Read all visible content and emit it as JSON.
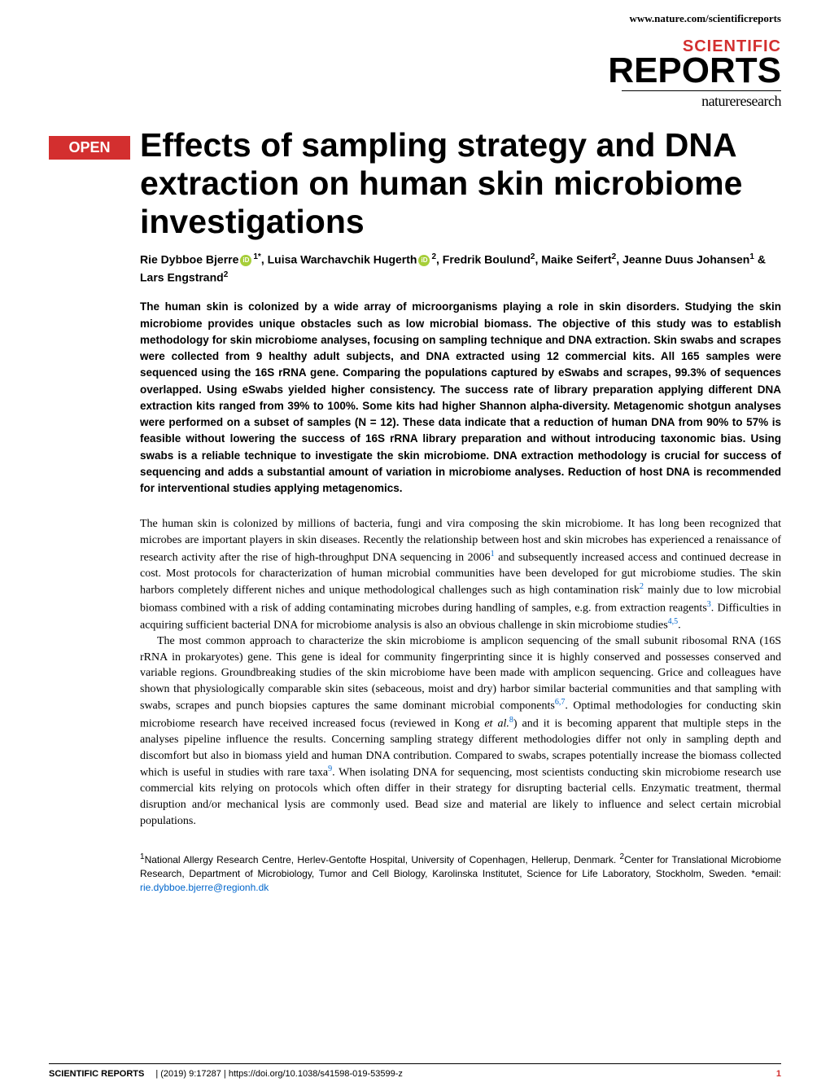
{
  "header": {
    "url": "www.nature.com/scientificreports"
  },
  "journal": {
    "scientific": "SCIENTIFIC",
    "reports": "REPORTS",
    "subtitle": "natureresearch"
  },
  "badge": {
    "open": "OPEN"
  },
  "article": {
    "title": "Effects of sampling strategy and DNA extraction on human skin microbiome investigations",
    "authors_html": "Rie Dybboe Bjerre{ORCID}<sup>1*</sup>, Luisa Warchavchik Hugerth{ORCID}<sup>2</sup>, Fredrik Boulund<sup>2</sup>, Maike Seifert<sup>2</sup>, Jeanne Duus Johansen<sup>1</sup> & Lars Engstrand<sup>2</sup>",
    "abstract": "The human skin is colonized by a wide array of microorganisms playing a role in skin disorders. Studying the skin microbiome provides unique obstacles such as low microbial biomass. The objective of this study was to establish methodology for skin microbiome analyses, focusing on sampling technique and DNA extraction. Skin swabs and scrapes were collected from 9 healthy adult subjects, and DNA extracted using 12 commercial kits. All 165 samples were sequenced using the 16S rRNA gene. Comparing the populations captured by eSwabs and scrapes, 99.3% of sequences overlapped. Using eSwabs yielded higher consistency. The success rate of library preparation applying different DNA extraction kits ranged from 39% to 100%. Some kits had higher Shannon alpha-diversity. Metagenomic shotgun analyses were performed on a subset of samples (N = 12). These data indicate that a reduction of human DNA from 90% to 57% is feasible without lowering the success of 16S rRNA library preparation and without introducing taxonomic bias. Using swabs is a reliable technique to investigate the skin microbiome. DNA extraction methodology is crucial for success of sequencing and adds a substantial amount of variation in microbiome analyses. Reduction of host DNA is recommended for interventional studies applying metagenomics.",
    "paragraph1_part1": "The human skin is colonized by millions of bacteria, fungi and vira composing the skin microbiome. It has long been recognized that microbes are important players in skin diseases. Recently the relationship between host and skin microbes has experienced a renaissance of research activity after the rise of high-throughput DNA sequencing in 2006",
    "paragraph1_ref1": "1",
    "paragraph1_part2": " and subsequently increased access and continued decrease in cost. Most protocols for characterization of human microbial communities have been developed for gut microbiome studies. The skin harbors completely different niches and unique methodological challenges such as high contamination risk",
    "paragraph1_ref2": "2",
    "paragraph1_part3": " mainly due to low microbial biomass combined with a risk of adding contaminating microbes during handling of samples, e.g. from extraction reagents",
    "paragraph1_ref3": "3",
    "paragraph1_part4": ". Difficulties in acquiring sufficient bacterial DNA for microbiome analysis is also an obvious challenge in skin microbiome studies",
    "paragraph1_ref4": "4,5",
    "paragraph1_part5": ".",
    "paragraph2_part1": "The most common approach to characterize the skin microbiome is amplicon sequencing of the small subunit ribosomal RNA (16S rRNA in prokaryotes) gene. This gene is ideal for community fingerprinting since it is highly conserved and possesses conserved and variable regions. Groundbreaking studies of the skin microbiome have been made with amplicon sequencing. Grice and colleagues have shown that physiologically comparable skin sites (sebaceous, moist and dry) harbor similar bacterial communities and that sampling with swabs, scrapes and punch biopsies captures the same dominant microbial components",
    "paragraph2_ref1": "6,7",
    "paragraph2_part2": ". Optimal methodologies for conducting skin microbiome research have received increased focus (reviewed in Kong ",
    "paragraph2_italic": "et al.",
    "paragraph2_ref2": "8",
    "paragraph2_part3": ") and it is becoming apparent that multiple steps in the analyses pipeline influence the results. Concerning sampling strategy different methodologies differ not only in sampling depth and discomfort but also in biomass yield and human DNA contribution. Compared to swabs, scrapes potentially increase the biomass collected which is useful in studies with rare taxa",
    "paragraph2_ref3": "9",
    "paragraph2_part4": ". When isolating DNA for sequencing, most scientists conducting skin microbiome research use commercial kits relying on protocols which often differ in their strategy for disrupting bacterial cells. Enzymatic treatment, thermal disruption and/or mechanical lysis are commonly used. Bead size and material are likely to influence and select certain microbial populations.",
    "affiliations_part1": "National Allergy Research Centre, Herlev-Gentofte Hospital, University of Copenhagen, Hellerup, Denmark. ",
    "affiliations_part2": "Center for Translational Microbiome Research, Department of Microbiology, Tumor and Cell Biology, Karolinska Institutet, Science for Life Laboratory, Stockholm, Sweden. *email: ",
    "email": "rie.dybboe.bjerre@regionh.dk"
  },
  "footer": {
    "journal": "SCIENTIFIC REPORTS",
    "citation": "(2019) 9:17287 | https://doi.org/10.1038/s41598-019-53599-z",
    "page": "1"
  },
  "colors": {
    "brand_red": "#d32f2f",
    "link_blue": "#0066cc",
    "orcid_green": "#A6CE39"
  }
}
